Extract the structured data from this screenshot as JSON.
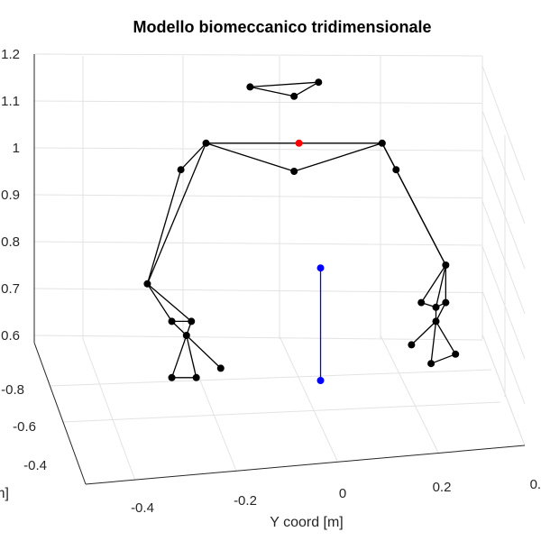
{
  "chart_data": {
    "type": "scatter3d",
    "title": "Modello biomeccanico tridimensionale",
    "xlabel": "X coord [m]",
    "ylabel": "Y coord [m]",
    "zlabel": "",
    "y_ticks": [
      "-0.4",
      "-0.2",
      "0",
      "0.2",
      "0.4"
    ],
    "x_ticks": [
      "-0.8",
      "-0.6",
      "-0.4"
    ],
    "z_ticks": [
      "0.6",
      "0.7",
      "0.8",
      "0.9",
      "1",
      "1.1",
      "1.2"
    ],
    "grid": true,
    "colors": {
      "markers": "#000000",
      "com_marker": "#ff0000",
      "support_line": "#0000ff",
      "text": "#262626"
    },
    "series": [
      {
        "name": "skeleton",
        "color": "#000000",
        "points": [
          {
            "id": "h1",
            "y": -0.18,
            "x": -0.62,
            "z": 1.13
          },
          {
            "id": "h2",
            "y": -0.04,
            "x": -0.62,
            "z": 1.14
          },
          {
            "id": "h3",
            "y": -0.09,
            "x": -0.62,
            "z": 1.11
          },
          {
            "id": "shL",
            "y": -0.27,
            "x": -0.62,
            "z": 1.01
          },
          {
            "id": "shR",
            "y": 0.09,
            "x": -0.62,
            "z": 1.01
          },
          {
            "id": "st",
            "y": -0.09,
            "x": -0.62,
            "z": 0.95
          },
          {
            "id": "elL",
            "y": -0.32,
            "x": -0.6,
            "z": 0.96
          },
          {
            "id": "elR",
            "y": 0.12,
            "x": -0.6,
            "z": 0.96
          },
          {
            "id": "waL",
            "y": -0.39,
            "x": -0.62,
            "z": 0.71
          },
          {
            "id": "waR",
            "y": 0.22,
            "x": -0.62,
            "z": 0.75
          },
          {
            "id": "hLa",
            "y": -0.34,
            "x": -0.62,
            "z": 0.63
          },
          {
            "id": "hLb",
            "y": -0.3,
            "x": -0.62,
            "z": 0.63
          },
          {
            "id": "hLc",
            "y": -0.31,
            "x": -0.62,
            "z": 0.6
          },
          {
            "id": "hLd",
            "y": -0.34,
            "x": -0.62,
            "z": 0.51
          },
          {
            "id": "hLe",
            "y": -0.29,
            "x": -0.62,
            "z": 0.51
          },
          {
            "id": "hLf",
            "y": -0.24,
            "x": -0.62,
            "z": 0.53
          },
          {
            "id": "hRa",
            "y": 0.17,
            "x": -0.62,
            "z": 0.67
          },
          {
            "id": "hRb",
            "y": 0.2,
            "x": -0.62,
            "z": 0.66
          },
          {
            "id": "hRc",
            "y": 0.22,
            "x": -0.62,
            "z": 0.67
          },
          {
            "id": "hRd",
            "y": 0.2,
            "x": -0.62,
            "z": 0.63
          },
          {
            "id": "hRe",
            "y": 0.15,
            "x": -0.62,
            "z": 0.58
          },
          {
            "id": "hRf",
            "y": 0.19,
            "x": -0.62,
            "z": 0.54
          },
          {
            "id": "hRg",
            "y": 0.24,
            "x": -0.62,
            "z": 0.56
          }
        ]
      },
      {
        "name": "center_of_mass",
        "color": "#ff0000",
        "points": [
          {
            "id": "com",
            "y": -0.08,
            "x": -0.62,
            "z": 1.01
          }
        ]
      },
      {
        "name": "support_line",
        "color": "#0000ff",
        "points": [
          {
            "id": "bTop",
            "y": -0.03,
            "x": -0.54,
            "z": 0.77
          },
          {
            "id": "bBot",
            "y": -0.03,
            "x": -0.54,
            "z": 0.53
          }
        ]
      }
    ],
    "connections": [
      [
        "h1",
        "h2"
      ],
      [
        "h2",
        "h3"
      ],
      [
        "h3",
        "h1"
      ],
      [
        "shL",
        "shR"
      ],
      [
        "shL",
        "st"
      ],
      [
        "st",
        "shR"
      ],
      [
        "shL",
        "elL"
      ],
      [
        "elL",
        "waL"
      ],
      [
        "shL",
        "waL"
      ],
      [
        "shR",
        "elR"
      ],
      [
        "elR",
        "waR"
      ],
      [
        "shR",
        "waR"
      ],
      [
        "waL",
        "hLa"
      ],
      [
        "waL",
        "hLb"
      ],
      [
        "hLa",
        "hLb"
      ],
      [
        "hLa",
        "hLc"
      ],
      [
        "hLb",
        "hLc"
      ],
      [
        "hLc",
        "hLd"
      ],
      [
        "hLc",
        "hLe"
      ],
      [
        "hLd",
        "hLe"
      ],
      [
        "hLc",
        "hLf"
      ],
      [
        "waR",
        "hRa"
      ],
      [
        "waR",
        "hRb"
      ],
      [
        "waR",
        "hRc"
      ],
      [
        "hRa",
        "hRb"
      ],
      [
        "hRb",
        "hRc"
      ],
      [
        "hRb",
        "hRd"
      ],
      [
        "hRc",
        "hRd"
      ],
      [
        "hRd",
        "hRe"
      ],
      [
        "hRd",
        "hRf"
      ],
      [
        "hRd",
        "hRg"
      ],
      [
        "hRf",
        "hRg"
      ],
      [
        "bTop",
        "bBot"
      ]
    ]
  }
}
